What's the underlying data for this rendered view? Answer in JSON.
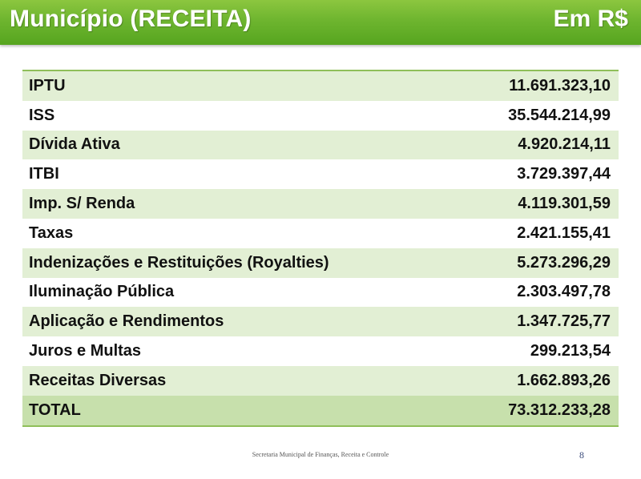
{
  "header": {
    "title": "Município (RECEITA)",
    "unit": "Em R$"
  },
  "table": {
    "rows": [
      {
        "label": "IPTU",
        "value": "11.691.323,10"
      },
      {
        "label": "ISS",
        "value": "35.544.214,99"
      },
      {
        "label": "Dívida Ativa",
        "value": "4.920.214,11"
      },
      {
        "label": "ITBI",
        "value": "3.729.397,44"
      },
      {
        "label": "Imp. S/ Renda",
        "value": "4.119.301,59"
      },
      {
        "label": "Taxas",
        "value": "2.421.155,41"
      },
      {
        "label": "Indenizações e Restituições (Royalties)",
        "value": "5.273.296,29"
      },
      {
        "label": "Iluminação Pública",
        "value": "2.303.497,78"
      },
      {
        "label": "Aplicação e Rendimentos",
        "value": "1.347.725,77"
      },
      {
        "label": "Juros e Multas",
        "value": "299.213,54"
      },
      {
        "label": "Receitas Diversas",
        "value": "1.662.893,26"
      }
    ],
    "total": {
      "label": "TOTAL",
      "value": "73.312.233,28"
    }
  },
  "footer": {
    "text": "Secretaria Municipal de Finanças, Receita e Controle",
    "page_number": "8"
  },
  "colors": {
    "header_green": "#6eb52f",
    "row_shade": "#e2efd4",
    "total_shade": "#c7e0ac"
  }
}
